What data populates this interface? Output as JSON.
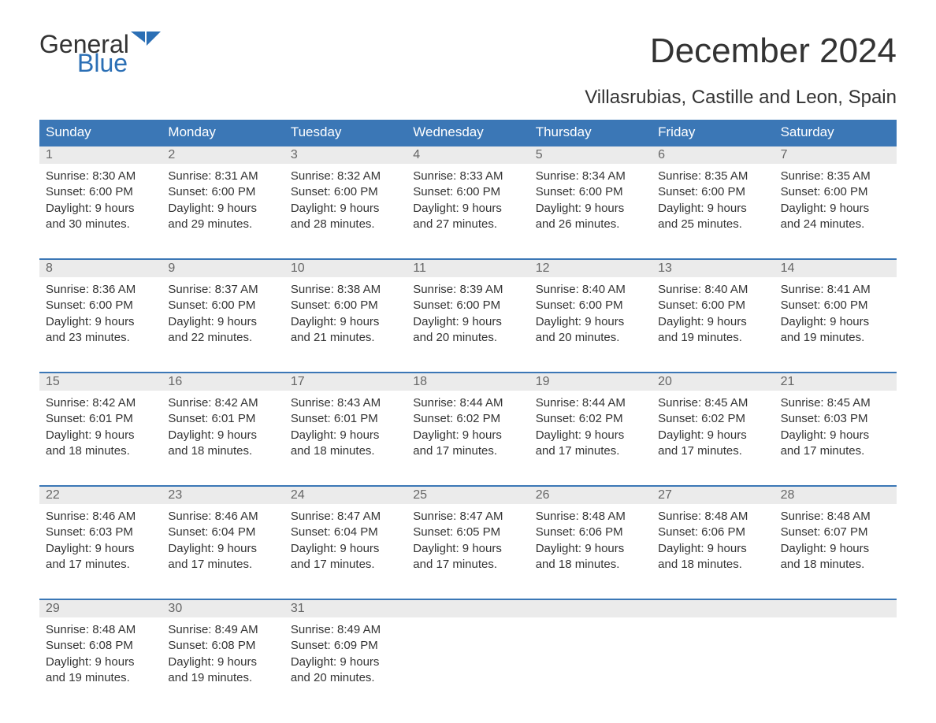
{
  "brand": {
    "word1": "General",
    "word2": "Blue",
    "word1_color": "#333333",
    "word2_color": "#2b6fb5",
    "flag_color": "#2b6fb5"
  },
  "title": "December 2024",
  "location": "Villasrubias, Castille and Leon, Spain",
  "colors": {
    "header_bg": "#3b77b6",
    "header_text": "#ffffff",
    "daynum_bg": "#ebebeb",
    "daynum_text": "#666666",
    "body_text": "#333333",
    "week_border": "#3b77b6",
    "page_bg": "#ffffff"
  },
  "typography": {
    "title_fontsize": 44,
    "location_fontsize": 24,
    "weekday_fontsize": 17,
    "daynum_fontsize": 16,
    "body_fontsize": 15,
    "logo_fontsize": 32
  },
  "weekdays": [
    "Sunday",
    "Monday",
    "Tuesday",
    "Wednesday",
    "Thursday",
    "Friday",
    "Saturday"
  ],
  "weeks": [
    [
      {
        "n": "1",
        "sunrise": "Sunrise: 8:30 AM",
        "sunset": "Sunset: 6:00 PM",
        "d1": "Daylight: 9 hours",
        "d2": "and 30 minutes."
      },
      {
        "n": "2",
        "sunrise": "Sunrise: 8:31 AM",
        "sunset": "Sunset: 6:00 PM",
        "d1": "Daylight: 9 hours",
        "d2": "and 29 minutes."
      },
      {
        "n": "3",
        "sunrise": "Sunrise: 8:32 AM",
        "sunset": "Sunset: 6:00 PM",
        "d1": "Daylight: 9 hours",
        "d2": "and 28 minutes."
      },
      {
        "n": "4",
        "sunrise": "Sunrise: 8:33 AM",
        "sunset": "Sunset: 6:00 PM",
        "d1": "Daylight: 9 hours",
        "d2": "and 27 minutes."
      },
      {
        "n": "5",
        "sunrise": "Sunrise: 8:34 AM",
        "sunset": "Sunset: 6:00 PM",
        "d1": "Daylight: 9 hours",
        "d2": "and 26 minutes."
      },
      {
        "n": "6",
        "sunrise": "Sunrise: 8:35 AM",
        "sunset": "Sunset: 6:00 PM",
        "d1": "Daylight: 9 hours",
        "d2": "and 25 minutes."
      },
      {
        "n": "7",
        "sunrise": "Sunrise: 8:35 AM",
        "sunset": "Sunset: 6:00 PM",
        "d1": "Daylight: 9 hours",
        "d2": "and 24 minutes."
      }
    ],
    [
      {
        "n": "8",
        "sunrise": "Sunrise: 8:36 AM",
        "sunset": "Sunset: 6:00 PM",
        "d1": "Daylight: 9 hours",
        "d2": "and 23 minutes."
      },
      {
        "n": "9",
        "sunrise": "Sunrise: 8:37 AM",
        "sunset": "Sunset: 6:00 PM",
        "d1": "Daylight: 9 hours",
        "d2": "and 22 minutes."
      },
      {
        "n": "10",
        "sunrise": "Sunrise: 8:38 AM",
        "sunset": "Sunset: 6:00 PM",
        "d1": "Daylight: 9 hours",
        "d2": "and 21 minutes."
      },
      {
        "n": "11",
        "sunrise": "Sunrise: 8:39 AM",
        "sunset": "Sunset: 6:00 PM",
        "d1": "Daylight: 9 hours",
        "d2": "and 20 minutes."
      },
      {
        "n": "12",
        "sunrise": "Sunrise: 8:40 AM",
        "sunset": "Sunset: 6:00 PM",
        "d1": "Daylight: 9 hours",
        "d2": "and 20 minutes."
      },
      {
        "n": "13",
        "sunrise": "Sunrise: 8:40 AM",
        "sunset": "Sunset: 6:00 PM",
        "d1": "Daylight: 9 hours",
        "d2": "and 19 minutes."
      },
      {
        "n": "14",
        "sunrise": "Sunrise: 8:41 AM",
        "sunset": "Sunset: 6:00 PM",
        "d1": "Daylight: 9 hours",
        "d2": "and 19 minutes."
      }
    ],
    [
      {
        "n": "15",
        "sunrise": "Sunrise: 8:42 AM",
        "sunset": "Sunset: 6:01 PM",
        "d1": "Daylight: 9 hours",
        "d2": "and 18 minutes."
      },
      {
        "n": "16",
        "sunrise": "Sunrise: 8:42 AM",
        "sunset": "Sunset: 6:01 PM",
        "d1": "Daylight: 9 hours",
        "d2": "and 18 minutes."
      },
      {
        "n": "17",
        "sunrise": "Sunrise: 8:43 AM",
        "sunset": "Sunset: 6:01 PM",
        "d1": "Daylight: 9 hours",
        "d2": "and 18 minutes."
      },
      {
        "n": "18",
        "sunrise": "Sunrise: 8:44 AM",
        "sunset": "Sunset: 6:02 PM",
        "d1": "Daylight: 9 hours",
        "d2": "and 17 minutes."
      },
      {
        "n": "19",
        "sunrise": "Sunrise: 8:44 AM",
        "sunset": "Sunset: 6:02 PM",
        "d1": "Daylight: 9 hours",
        "d2": "and 17 minutes."
      },
      {
        "n": "20",
        "sunrise": "Sunrise: 8:45 AM",
        "sunset": "Sunset: 6:02 PM",
        "d1": "Daylight: 9 hours",
        "d2": "and 17 minutes."
      },
      {
        "n": "21",
        "sunrise": "Sunrise: 8:45 AM",
        "sunset": "Sunset: 6:03 PM",
        "d1": "Daylight: 9 hours",
        "d2": "and 17 minutes."
      }
    ],
    [
      {
        "n": "22",
        "sunrise": "Sunrise: 8:46 AM",
        "sunset": "Sunset: 6:03 PM",
        "d1": "Daylight: 9 hours",
        "d2": "and 17 minutes."
      },
      {
        "n": "23",
        "sunrise": "Sunrise: 8:46 AM",
        "sunset": "Sunset: 6:04 PM",
        "d1": "Daylight: 9 hours",
        "d2": "and 17 minutes."
      },
      {
        "n": "24",
        "sunrise": "Sunrise: 8:47 AM",
        "sunset": "Sunset: 6:04 PM",
        "d1": "Daylight: 9 hours",
        "d2": "and 17 minutes."
      },
      {
        "n": "25",
        "sunrise": "Sunrise: 8:47 AM",
        "sunset": "Sunset: 6:05 PM",
        "d1": "Daylight: 9 hours",
        "d2": "and 17 minutes."
      },
      {
        "n": "26",
        "sunrise": "Sunrise: 8:48 AM",
        "sunset": "Sunset: 6:06 PM",
        "d1": "Daylight: 9 hours",
        "d2": "and 18 minutes."
      },
      {
        "n": "27",
        "sunrise": "Sunrise: 8:48 AM",
        "sunset": "Sunset: 6:06 PM",
        "d1": "Daylight: 9 hours",
        "d2": "and 18 minutes."
      },
      {
        "n": "28",
        "sunrise": "Sunrise: 8:48 AM",
        "sunset": "Sunset: 6:07 PM",
        "d1": "Daylight: 9 hours",
        "d2": "and 18 minutes."
      }
    ],
    [
      {
        "n": "29",
        "sunrise": "Sunrise: 8:48 AM",
        "sunset": "Sunset: 6:08 PM",
        "d1": "Daylight: 9 hours",
        "d2": "and 19 minutes."
      },
      {
        "n": "30",
        "sunrise": "Sunrise: 8:49 AM",
        "sunset": "Sunset: 6:08 PM",
        "d1": "Daylight: 9 hours",
        "d2": "and 19 minutes."
      },
      {
        "n": "31",
        "sunrise": "Sunrise: 8:49 AM",
        "sunset": "Sunset: 6:09 PM",
        "d1": "Daylight: 9 hours",
        "d2": "and 20 minutes."
      },
      null,
      null,
      null,
      null
    ]
  ]
}
